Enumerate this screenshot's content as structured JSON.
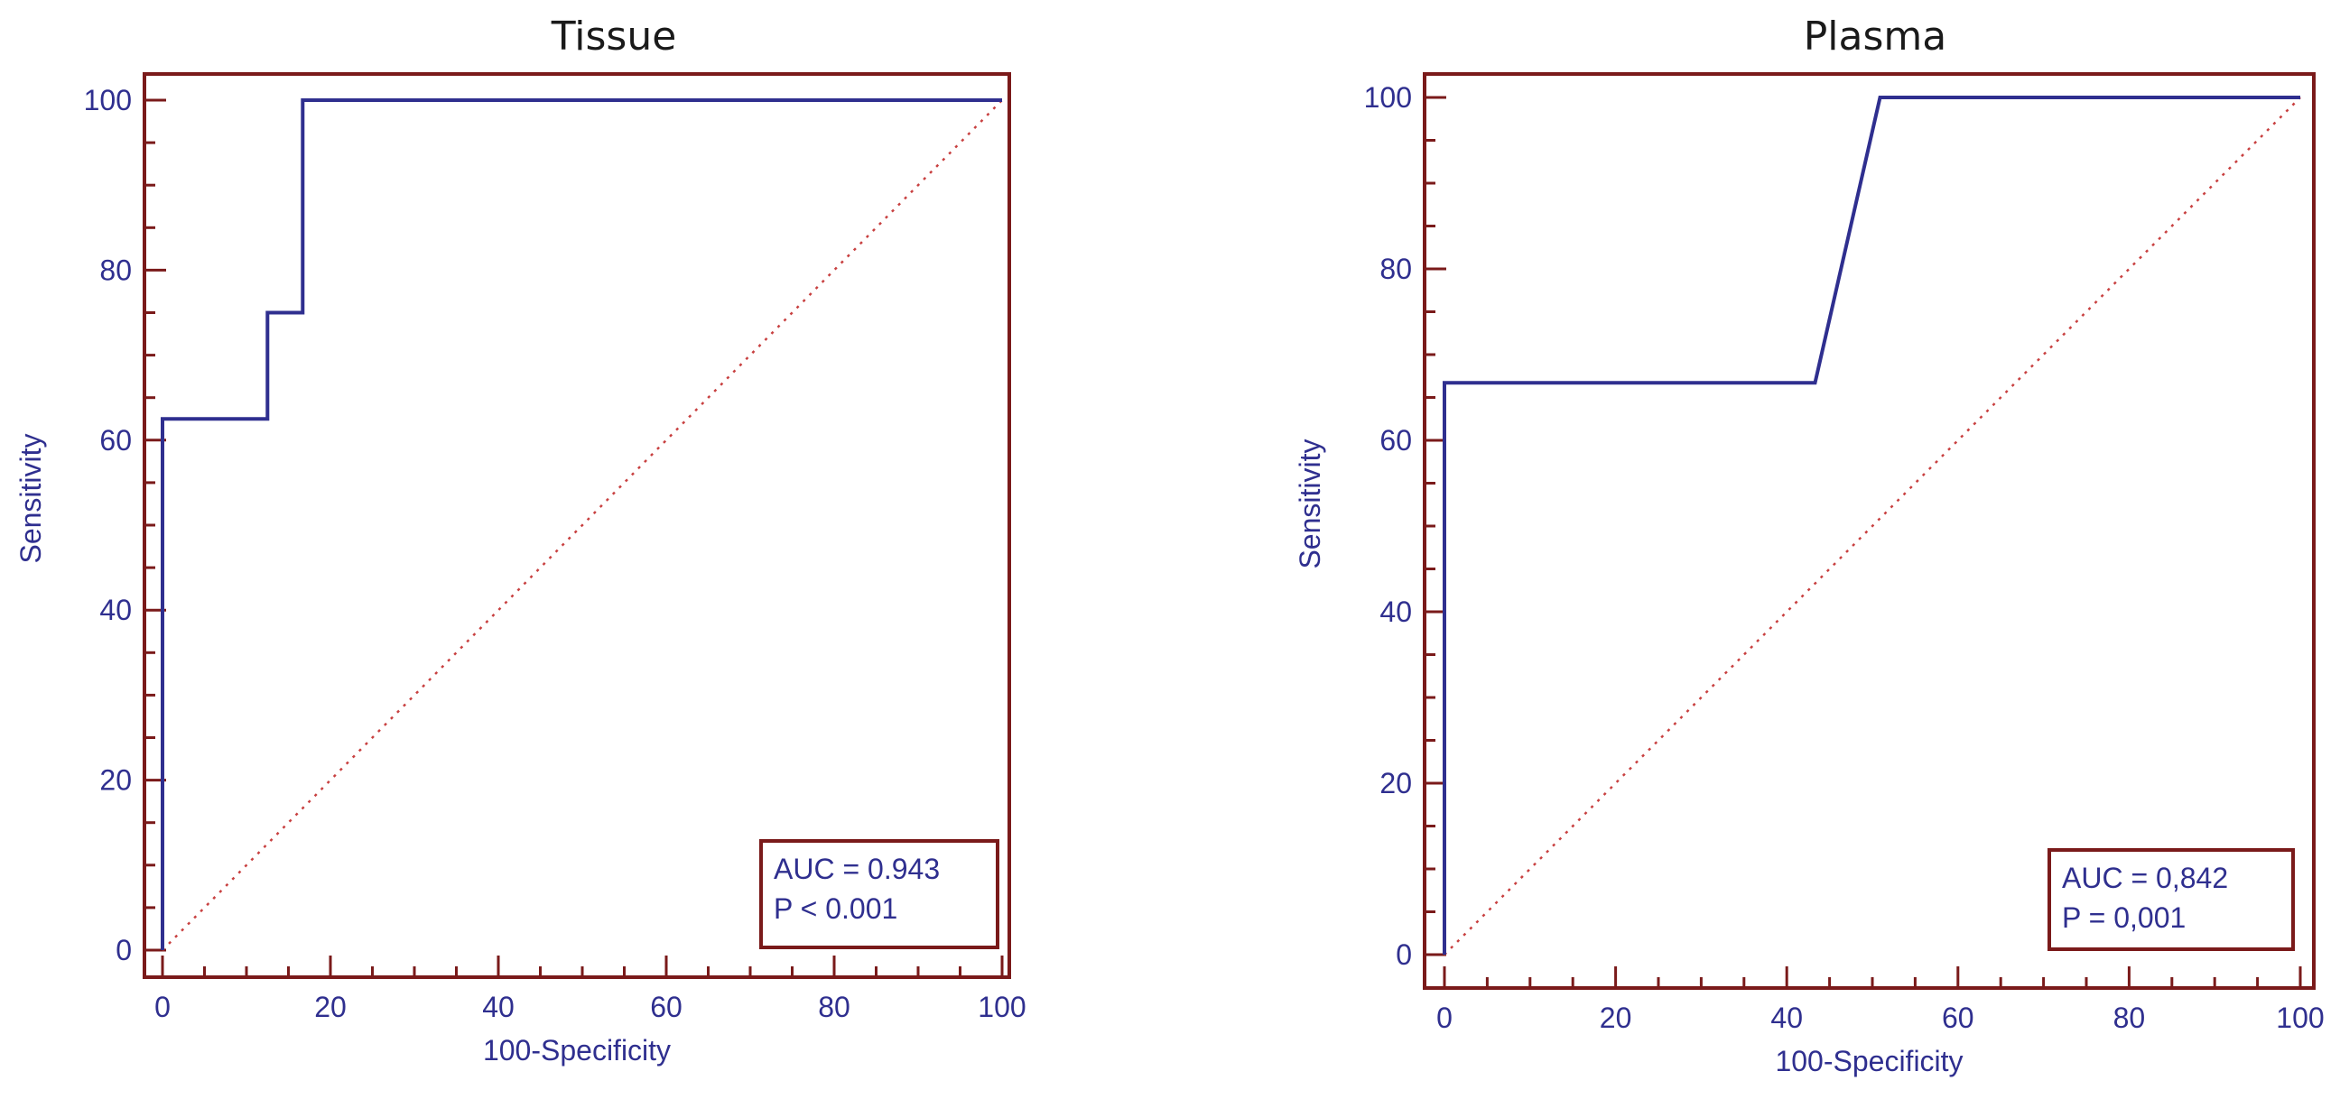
{
  "colors": {
    "frame": "#7a1a1a",
    "curve": "#2f2f8f",
    "diagonal": "#c84040",
    "text": "#2f2f8f"
  },
  "chart_data": [
    {
      "type": "line",
      "title": "Tissue",
      "xlabel": "100-Specificity",
      "ylabel": "Sensitivity",
      "xlim": [
        0,
        100
      ],
      "ylim": [
        0,
        100
      ],
      "xticks": [
        0,
        20,
        40,
        60,
        80,
        100
      ],
      "yticks": [
        0,
        20,
        40,
        60,
        80,
        100
      ],
      "series": [
        {
          "x": [
            0,
            0,
            12.5,
            12.5,
            16.7,
            16.7,
            100
          ],
          "y": [
            0,
            62.5,
            62.5,
            75,
            75,
            100,
            100
          ]
        }
      ],
      "reference_line": {
        "x": [
          0,
          100
        ],
        "y": [
          0,
          100
        ]
      },
      "annotation": [
        "AUC = 0.943",
        "P < 0.001"
      ],
      "grid": false
    },
    {
      "type": "line",
      "title": "Plasma",
      "xlabel": "100-Specificity",
      "ylabel": "Sensitivity",
      "xlim": [
        0,
        100
      ],
      "ylim": [
        0,
        100
      ],
      "xticks": [
        0,
        20,
        40,
        60,
        80,
        100
      ],
      "yticks": [
        0,
        20,
        40,
        60,
        80,
        100
      ],
      "series": [
        {
          "x": [
            0,
            0,
            43.3,
            50.9,
            100
          ],
          "y": [
            0,
            66.7,
            66.7,
            100,
            100
          ]
        }
      ],
      "reference_line": {
        "x": [
          0,
          100
        ],
        "y": [
          0,
          100
        ]
      },
      "annotation": [
        "AUC = 0,842",
        "P = 0,001"
      ],
      "grid": false
    }
  ]
}
